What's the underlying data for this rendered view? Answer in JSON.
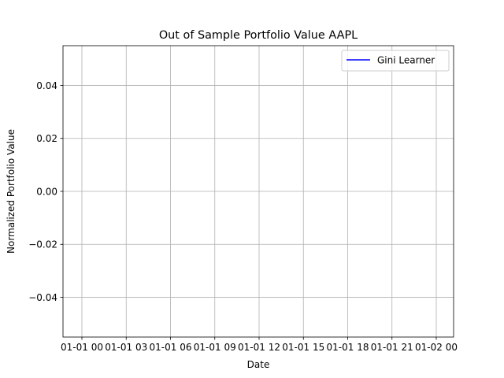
{
  "chart_data": {
    "type": "line",
    "title": "Out of Sample Portfolio Value AAPL",
    "xlabel": "Date",
    "ylabel": "Normalized Portfolio Value",
    "x_ticks": [
      "01-01 00",
      "01-01 03",
      "01-01 06",
      "01-01 09",
      "01-01 12",
      "01-01 15",
      "01-01 18",
      "01-01 21",
      "01-02 00"
    ],
    "y_ticks": [
      "0.04",
      "0.02",
      "0.00",
      "−0.02",
      "−0.04"
    ],
    "y_tick_values": [
      0.04,
      0.02,
      0.0,
      -0.02,
      -0.04
    ],
    "ylim": [
      -0.055,
      0.055
    ],
    "grid": true,
    "legend_position": "top-right",
    "series": [
      {
        "name": "Gini Learner",
        "color": "#0000ff",
        "x": [],
        "y": []
      }
    ]
  }
}
